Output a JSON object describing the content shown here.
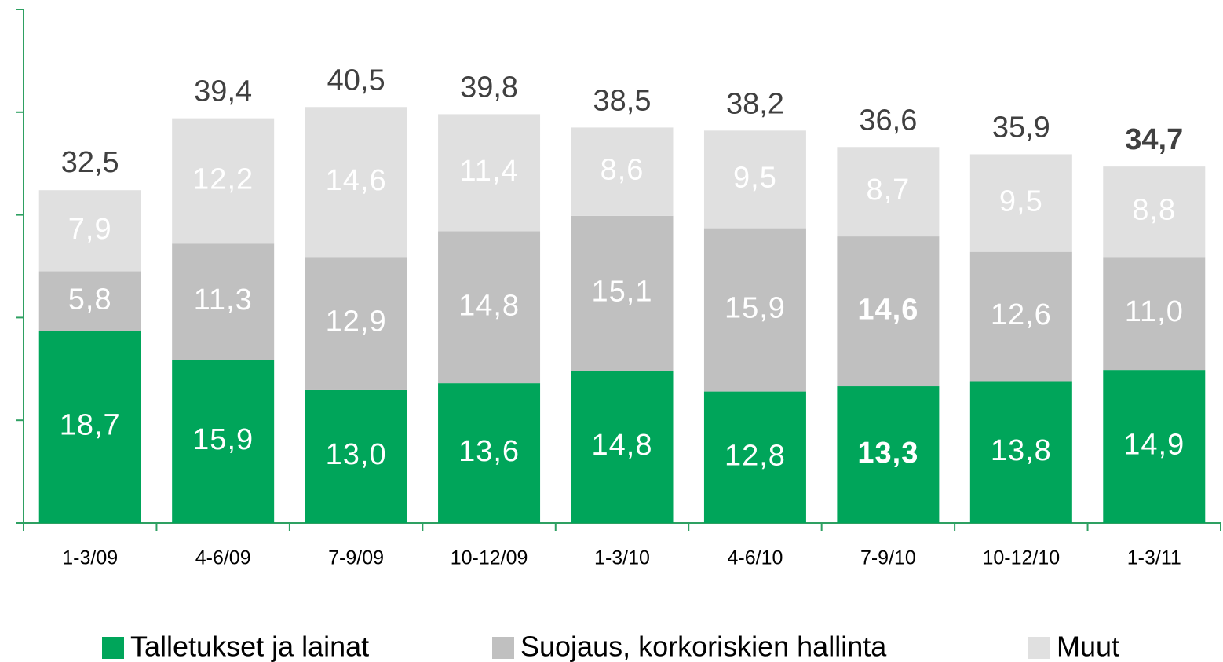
{
  "chart_data": {
    "type": "stacked_bar",
    "categories": [
      "1-3/09",
      "4-6/09",
      "7-9/09",
      "10-12/09",
      "1-3/10",
      "4-6/10",
      "7-9/10",
      "10-12/10",
      "1-3/11"
    ],
    "series": [
      {
        "name": "Talletukset ja lainat",
        "color": "#00a55a",
        "values": [
          18.7,
          15.9,
          13.0,
          13.6,
          14.8,
          12.8,
          13.3,
          13.8,
          14.9
        ],
        "value_labels": [
          "18,7",
          "15,9",
          "13,0",
          "13,6",
          "14,8",
          "12,8",
          "13,3",
          "13,8",
          "14,9"
        ]
      },
      {
        "name": "Suojaus, korkoriskien hallinta",
        "color": "#c0c0c0",
        "values": [
          5.8,
          11.3,
          12.9,
          14.8,
          15.1,
          15.9,
          14.6,
          12.6,
          11.0
        ],
        "value_labels": [
          "5,8",
          "11,3",
          "12,9",
          "14,8",
          "15,1",
          "15,9",
          "14,6",
          "12,6",
          "11,0"
        ]
      },
      {
        "name": "Muut",
        "color": "#e0e0e0",
        "values": [
          7.9,
          12.2,
          14.6,
          11.4,
          8.6,
          9.5,
          8.7,
          9.5,
          8.8
        ],
        "value_labels": [
          "7,9",
          "12,2",
          "14,6",
          "11,4",
          "8,6",
          "9,5",
          "8,7",
          "9,5",
          "8,8"
        ]
      }
    ],
    "totals": [
      32.5,
      39.4,
      40.5,
      39.8,
      38.5,
      38.2,
      36.6,
      35.9,
      34.7
    ],
    "total_labels": [
      "32,5",
      "39,4",
      "40,5",
      "39,8",
      "38,5",
      "38,2",
      "36,6",
      "35,9",
      "34,7"
    ],
    "ylim": [
      0,
      50
    ],
    "yticks": [
      0,
      10,
      20,
      30,
      40,
      50
    ],
    "axis_color": "#2ea062"
  }
}
